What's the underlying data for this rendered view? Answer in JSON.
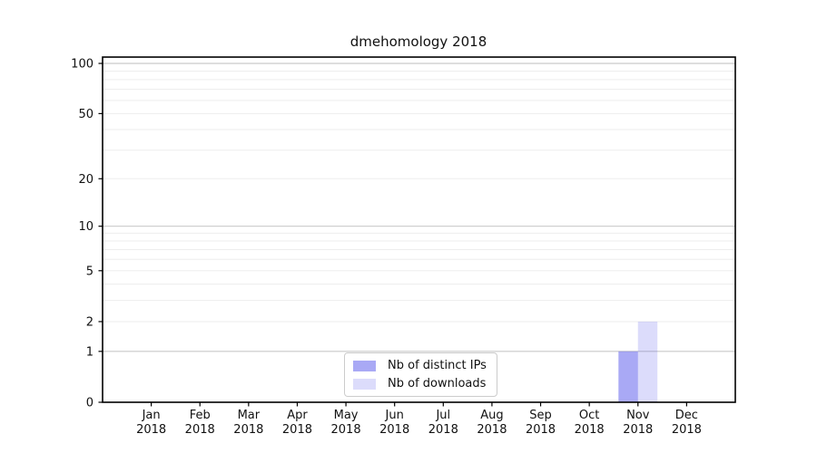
{
  "chart_data": {
    "type": "bar",
    "title": "dmehomology 2018",
    "xlabel": "",
    "ylabel": "",
    "x": {
      "categories": [
        {
          "month": "Jan",
          "year": "2018"
        },
        {
          "month": "Feb",
          "year": "2018"
        },
        {
          "month": "Mar",
          "year": "2018"
        },
        {
          "month": "Apr",
          "year": "2018"
        },
        {
          "month": "May",
          "year": "2018"
        },
        {
          "month": "Jun",
          "year": "2018"
        },
        {
          "month": "Jul",
          "year": "2018"
        },
        {
          "month": "Aug",
          "year": "2018"
        },
        {
          "month": "Sep",
          "year": "2018"
        },
        {
          "month": "Oct",
          "year": "2018"
        },
        {
          "month": "Nov",
          "year": "2018"
        },
        {
          "month": "Dec",
          "year": "2018"
        }
      ]
    },
    "y": {
      "scale": "log(1+x)",
      "min": 0,
      "max": 100,
      "tick_values": [
        0,
        1,
        2,
        5,
        10,
        20,
        50,
        100
      ],
      "major_gridlines": [
        1,
        10,
        100
      ],
      "minor_gridlines": [
        2,
        3,
        4,
        5,
        6,
        7,
        8,
        9,
        20,
        30,
        40,
        50,
        60,
        70,
        80,
        90
      ]
    },
    "series": [
      {
        "name": "Nb of distinct IPs",
        "fill": "rgba(90,90,235,0.52)",
        "values": [
          0,
          0,
          0,
          0,
          0,
          0,
          0,
          0,
          0,
          0,
          1,
          0
        ]
      },
      {
        "name": "Nb of downloads",
        "fill": "rgba(90,90,235,0.21)",
        "values": [
          0,
          0,
          0,
          0,
          0,
          0,
          0,
          0,
          0,
          0,
          2,
          0
        ]
      }
    ],
    "legend": {
      "position": "lower center"
    }
  },
  "colors": {
    "background": "#ffffff",
    "spine": "#000000",
    "text": "#111111",
    "grid_major": "#c9c9c9",
    "grid_minor": "#ededed",
    "legend_border": "#cccccc"
  }
}
